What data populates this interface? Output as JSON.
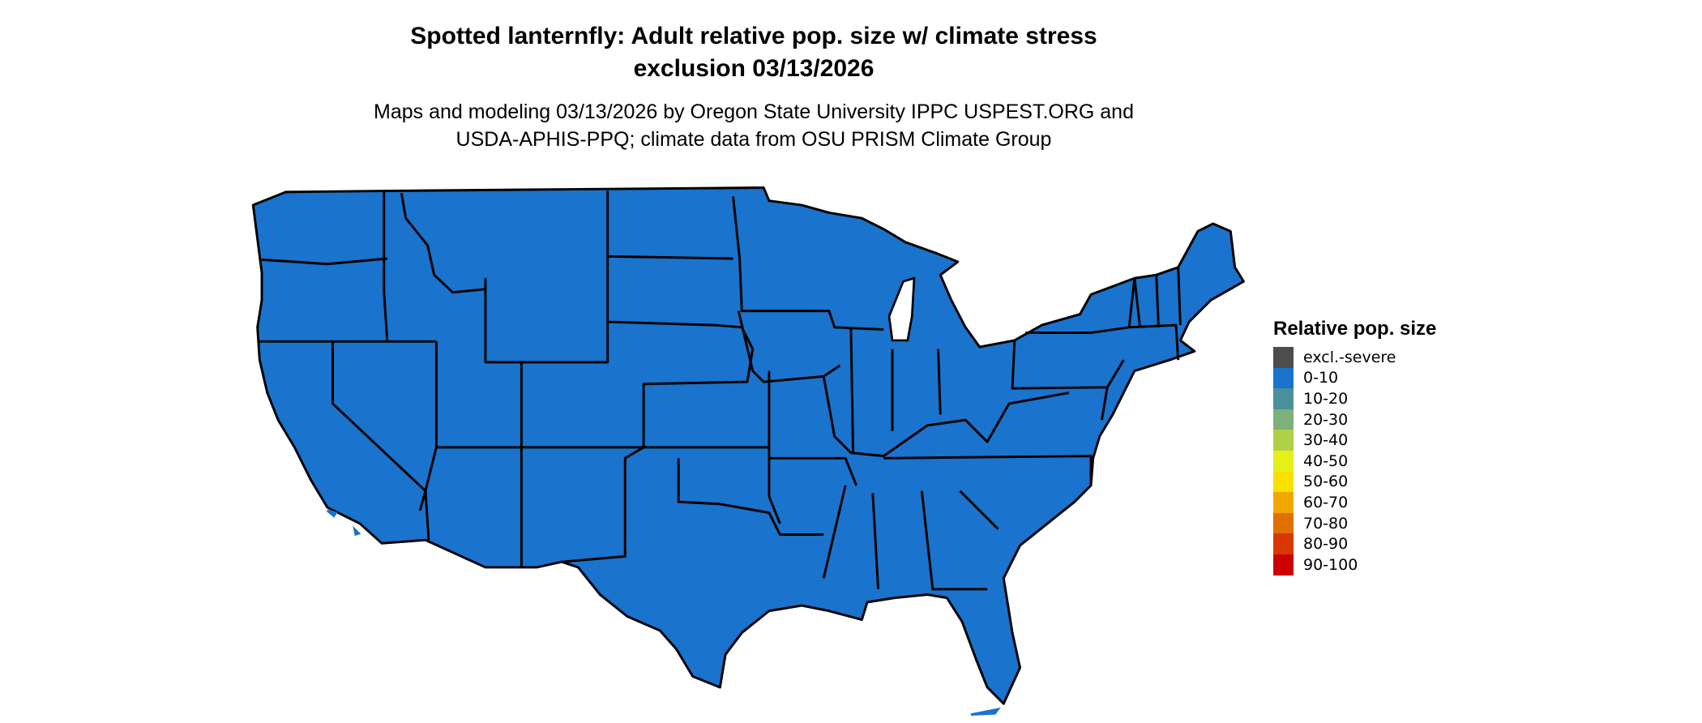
{
  "title": {
    "line1": "Spotted lanternfly: Adult relative pop. size w/ climate stress",
    "line2": "exclusion 03/13/2026"
  },
  "subtitle": {
    "line1": "Maps and modeling 03/13/2026 by Oregon State University IPPC USPEST.ORG and",
    "line2": "USDA-APHIS-PPQ; climate data from OSU PRISM Climate Group"
  },
  "map": {
    "region": "Contiguous United States",
    "fill_category": "0-10",
    "fill_color": "#1a73cc",
    "border_color": "#000000"
  },
  "legend": {
    "title": "Relative pop. size",
    "items": [
      {
        "label": "excl.-severe",
        "color": "#4d4d4d"
      },
      {
        "label": "0-10",
        "color": "#1a73cc"
      },
      {
        "label": "10-20",
        "color": "#4a8f9c"
      },
      {
        "label": "20-30",
        "color": "#7db07a"
      },
      {
        "label": "30-40",
        "color": "#b0d046"
      },
      {
        "label": "40-50",
        "color": "#e4f016"
      },
      {
        "label": "50-60",
        "color": "#f8e000"
      },
      {
        "label": "60-70",
        "color": "#f0a800"
      },
      {
        "label": "70-80",
        "color": "#e07000"
      },
      {
        "label": "80-90",
        "color": "#d83800"
      },
      {
        "label": "90-100",
        "color": "#cc0000"
      }
    ]
  }
}
